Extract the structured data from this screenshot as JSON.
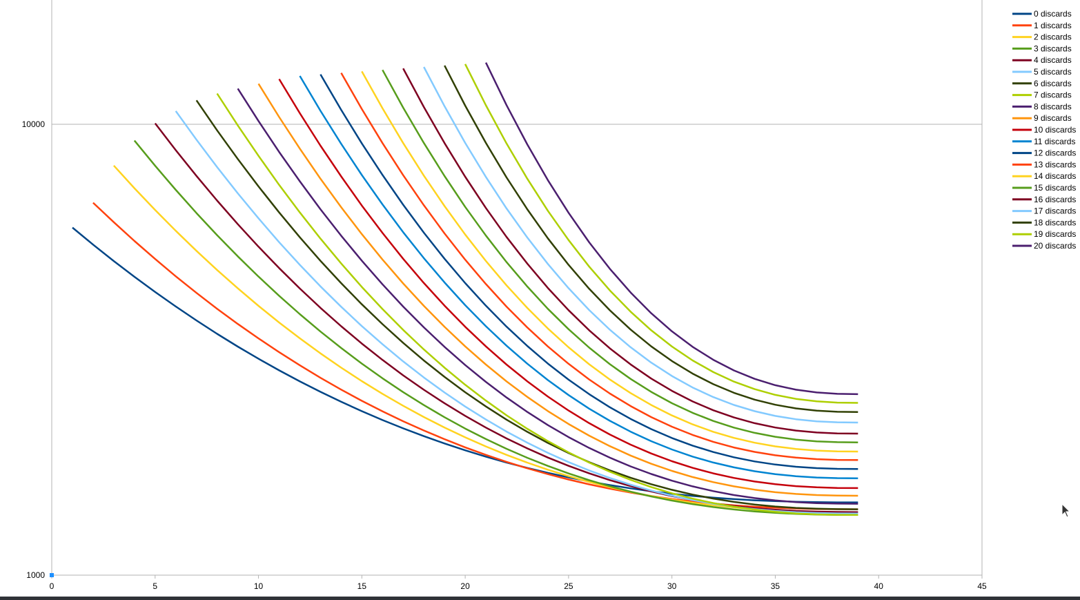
{
  "chart_data": {
    "type": "line",
    "title": "",
    "xlabel": "",
    "ylabel": "",
    "xlim": [
      0,
      45
    ],
    "ylim": [
      1000,
      20000
    ],
    "y_scale": "log",
    "x_ticks": [
      0,
      5,
      10,
      15,
      20,
      25,
      30,
      35,
      40,
      45
    ],
    "y_ticks": [
      1000,
      10000
    ],
    "grid": "horizontal major lines at 1000 and 10000",
    "legend_position": "right",
    "x_end": 39,
    "colors": [
      "#004586",
      "#ff420e",
      "#ffd320",
      "#579d1c",
      "#7e0021",
      "#83caff",
      "#314004",
      "#aecf00",
      "#4b1f6f",
      "#ff950e",
      "#c5000b",
      "#0084d1"
    ],
    "series": [
      {
        "name": "0 discards",
        "start_x": 1,
        "start_y": 5900,
        "end_y": 1450
      },
      {
        "name": "1 discards",
        "start_x": 2,
        "start_y": 6700,
        "end_y": 1400
      },
      {
        "name": "2 discards",
        "start_x": 3,
        "start_y": 8100,
        "end_y": 1380
      },
      {
        "name": "3 discards",
        "start_x": 4,
        "start_y": 9200,
        "end_y": 1360
      },
      {
        "name": "4 discards",
        "start_x": 5,
        "start_y": 10050,
        "end_y": 1380
      },
      {
        "name": "5 discards",
        "start_x": 6,
        "start_y": 10700,
        "end_y": 1370
      },
      {
        "name": "6 discards",
        "start_x": 7,
        "start_y": 11300,
        "end_y": 1400
      },
      {
        "name": "7 discards",
        "start_x": 8,
        "start_y": 11700,
        "end_y": 1360
      },
      {
        "name": "8 discards",
        "start_x": 9,
        "start_y": 12000,
        "end_y": 1440
      },
      {
        "name": "9 discards",
        "start_x": 10,
        "start_y": 12300,
        "end_y": 1500
      },
      {
        "name": "10 discards",
        "start_x": 11,
        "start_y": 12600,
        "end_y": 1560
      },
      {
        "name": "11 discards",
        "start_x": 12,
        "start_y": 12800,
        "end_y": 1640
      },
      {
        "name": "12 discards",
        "start_x": 13,
        "start_y": 12900,
        "end_y": 1720
      },
      {
        "name": "13 discards",
        "start_x": 14,
        "start_y": 13000,
        "end_y": 1800
      },
      {
        "name": "14 discards",
        "start_x": 15,
        "start_y": 13100,
        "end_y": 1880
      },
      {
        "name": "15 discards",
        "start_x": 16,
        "start_y": 13200,
        "end_y": 1970
      },
      {
        "name": "16 discards",
        "start_x": 17,
        "start_y": 13300,
        "end_y": 2060
      },
      {
        "name": "17 discards",
        "start_x": 18,
        "start_y": 13400,
        "end_y": 2180
      },
      {
        "name": "18 discards",
        "start_x": 19,
        "start_y": 13500,
        "end_y": 2300
      },
      {
        "name": "19 discards",
        "start_x": 20,
        "start_y": 13600,
        "end_y": 2410
      },
      {
        "name": "20 discards",
        "start_x": 21,
        "start_y": 13700,
        "end_y": 2520
      }
    ]
  }
}
